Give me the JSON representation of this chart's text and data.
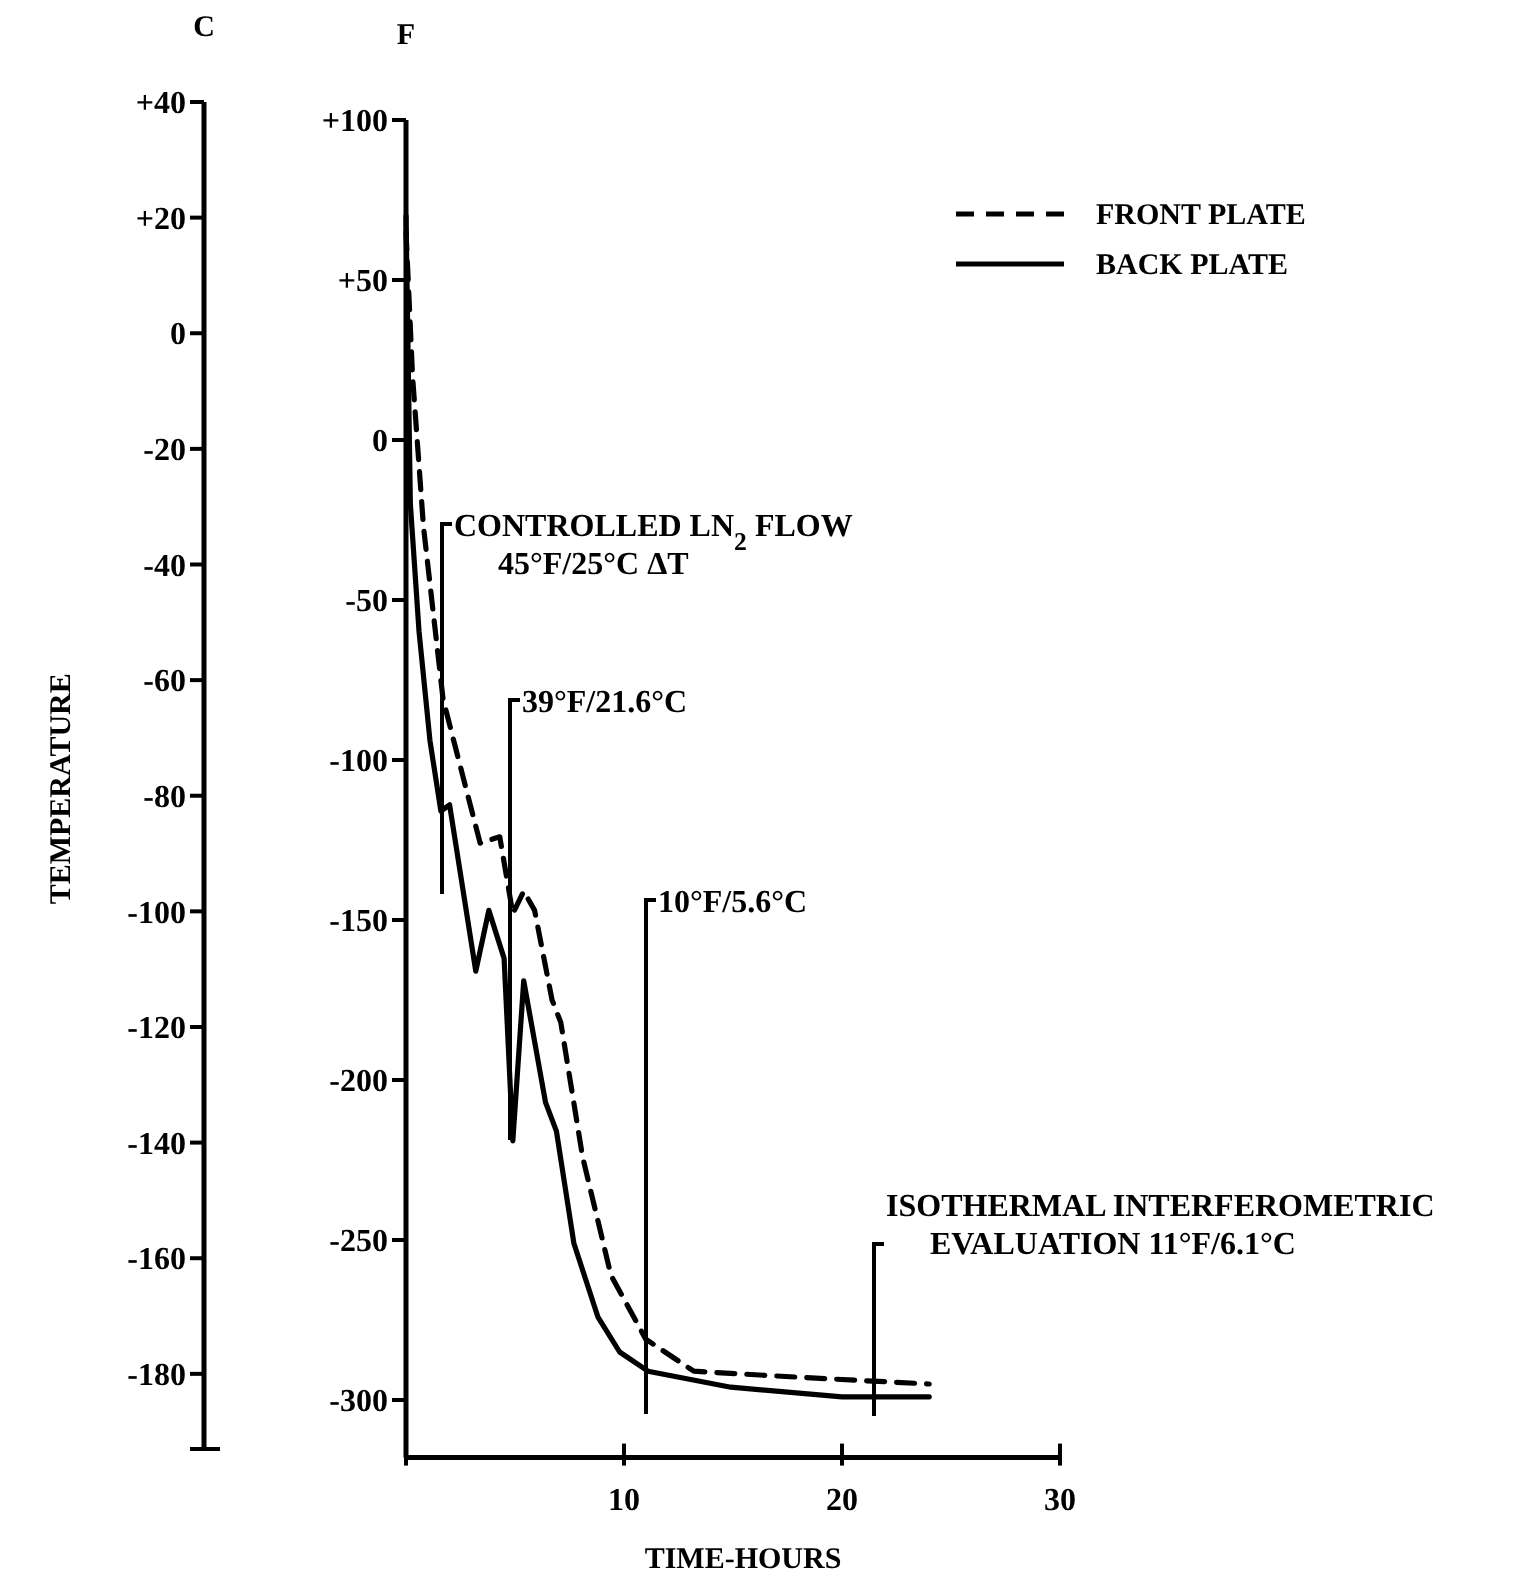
{
  "chart_data": {
    "type": "line",
    "xlabel": "TIME-HOURS",
    "ylabel": "F",
    "y2label": "C",
    "xlim": [
      0,
      30
    ],
    "xticks": [
      {
        "value": 0,
        "label": null
      },
      10,
      20,
      30
    ],
    "ylim": [
      -318,
      100
    ],
    "yticks": [
      {
        "value": 100,
        "label": "+100"
      },
      {
        "value": 50,
        "label": "+50"
      },
      0,
      -50,
      -100,
      -150,
      -200,
      -250,
      -300
    ],
    "y2lim": [
      -193,
      40
    ],
    "y2ticks": [
      {
        "value": 40,
        "label": "+40"
      },
      {
        "value": 20,
        "label": "+20"
      },
      0,
      -20,
      -40,
      -60,
      -80,
      -100,
      -120,
      -140,
      -160,
      -180
    ],
    "legend": "top right",
    "marker": "none",
    "grid": false,
    "series": [
      {
        "name": "FRONT PLATE",
        "color": "#000000",
        "line_style": "dashed",
        "x": [
          0,
          0.3,
          0.8,
          1.7,
          3.4,
          4.3,
          4.9,
          5.4,
          5.9,
          6.7,
          7.1,
          8.1,
          9.4,
          11,
          13.2,
          18.3,
          24
        ],
        "values": [
          65,
          20,
          -27,
          -81,
          -126,
          -124,
          -148,
          -141,
          -147,
          -175,
          -182,
          -224,
          -261,
          -281,
          -291,
          -293,
          -295
        ]
      },
      {
        "name": "BACK PLATE",
        "color": "#000000",
        "line_style": "solid",
        "x": [
          0,
          0.2,
          0.6,
          1.1,
          1.6,
          2,
          3.2,
          3.8,
          4.5,
          4.9,
          5.4,
          6.4,
          6.9,
          7.7,
          8.8,
          9.8,
          11.1,
          14.9,
          20,
          24
        ],
        "values": [
          70,
          -20,
          -60,
          -94,
          -116,
          -114,
          -166,
          -147,
          -162,
          -219,
          -169,
          -207,
          -216,
          -251,
          -274,
          -285,
          -291,
          -296,
          -299,
          -299
        ]
      }
    ],
    "annotations": [
      "TEMPERATURE",
      "CONTROLLED LN$_{2}$ FLOW\n45°F/25°C ΔT",
      "39°F/21.6°C",
      "10°F/5.6°C",
      "ISOTHERMAL INTERFEROMETRIC\nEVALUATION 11°F/6.1°C"
    ]
  }
}
